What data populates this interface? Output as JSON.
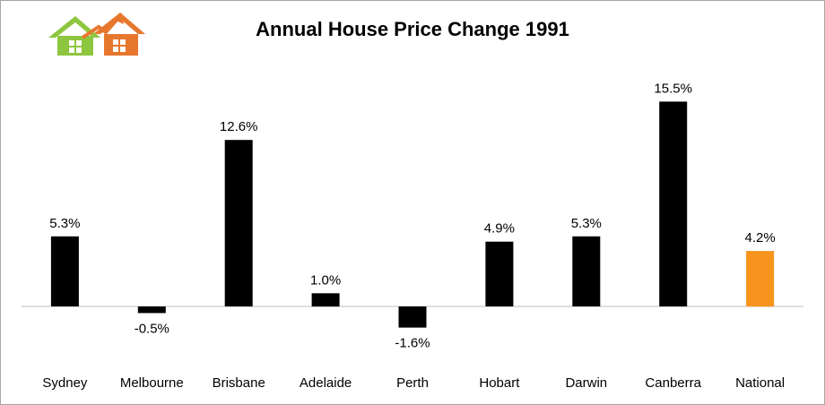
{
  "chart_data": {
    "type": "bar",
    "title": "Annual House Price Change 1991",
    "categories": [
      "Sydney",
      "Melbourne",
      "Brisbane",
      "Adelaide",
      "Perth",
      "Hobart",
      "Darwin",
      "Canberra",
      "National"
    ],
    "values": [
      5.3,
      -0.5,
      12.6,
      1.0,
      -1.6,
      4.9,
      5.3,
      15.5,
      4.2
    ],
    "value_labels": [
      "5.3%",
      "-0.5%",
      "12.6%",
      "1.0%",
      "-1.6%",
      "4.9%",
      "5.3%",
      "15.5%",
      "4.2%"
    ],
    "unit": "%",
    "bar_colors": [
      "#000000",
      "#000000",
      "#000000",
      "#000000",
      "#000000",
      "#000000",
      "#000000",
      "#000000",
      "#f7941d"
    ],
    "grid": false,
    "legend": false
  },
  "logo": {
    "icon": "house-growth-logo",
    "colors": {
      "roof": "#e8772e",
      "house": "#8dc63f",
      "arrow": "#e8772e"
    }
  }
}
